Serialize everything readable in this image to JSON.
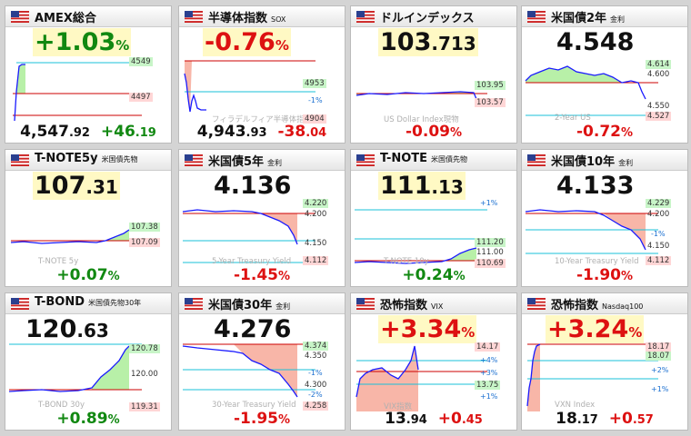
{
  "colors": {
    "positive": "#118811",
    "negative": "#dd1111",
    "line": "#1a1aff",
    "fill_pos": "#b8f0a8",
    "fill_neg": "#f8b6a8"
  },
  "panels": [
    {
      "id": "amex",
      "title": "AMEX総合",
      "subtitle": "",
      "big": {
        "int": "+1.03",
        "dec": "",
        "pct": "%"
      },
      "big_color": "pos",
      "labels": [
        {
          "text": "4549",
          "bg": "g"
        },
        {
          "text": "4497",
          "bg": "r"
        }
      ],
      "watermark": "",
      "footer": {
        "value_int": "4,547",
        "value_dec": ".92",
        "change_int": "+46",
        "change_dec": ".19",
        "change_color": "pos"
      }
    },
    {
      "id": "sox",
      "title": "半導体指数",
      "subtitle": "SOX",
      "big": {
        "int": "-0.76",
        "dec": "",
        "pct": "%"
      },
      "big_color": "neg",
      "labels": [
        {
          "text": "4953",
          "bg": "g"
        },
        {
          "text": "-1%",
          "bg": "p"
        },
        {
          "text": "4904",
          "bg": "r"
        }
      ],
      "watermark": "フィラデルフィア半導体指数",
      "footer": {
        "value_int": "4,943",
        "value_dec": ".93",
        "change_int": "-38",
        "change_dec": ".04",
        "change_color": "neg"
      }
    },
    {
      "id": "dxy",
      "title": "ドルインデックス",
      "subtitle": "",
      "big": {
        "int": "103",
        "dec": ".713",
        "pct": ""
      },
      "big_color": "blk",
      "labels": [
        {
          "text": "103.95",
          "bg": "g"
        },
        {
          "text": "103.57",
          "bg": "r"
        }
      ],
      "watermark": "US Dollar Index現物",
      "footer": {
        "value_int": "-0.09",
        "value_dec": "%",
        "change_int": "",
        "change_dec": "",
        "change_color": "neg",
        "single": true
      }
    },
    {
      "id": "us2y",
      "title": "米国債2年",
      "subtitle": "金利",
      "big": {
        "int": "4.548",
        "dec": "",
        "pct": ""
      },
      "big_color": "blk",
      "labels": [
        {
          "text": "4.614",
          "bg": "g"
        },
        {
          "text": "4.600",
          "bg": "n"
        },
        {
          "text": "4.550",
          "bg": "n"
        },
        {
          "text": "4.527",
          "bg": "r"
        }
      ],
      "watermark": "2-Year US",
      "footer": {
        "value_int": "-0.72",
        "value_dec": "%",
        "change_int": "",
        "change_dec": "",
        "change_color": "neg",
        "single": true
      }
    },
    {
      "id": "tnote5",
      "title": "T-NOTE5y",
      "subtitle": "米国債先物",
      "big": {
        "int": "107",
        "dec": ".31",
        "pct": ""
      },
      "big_color": "blk",
      "labels": [
        {
          "text": "107.38",
          "bg": "g"
        },
        {
          "text": "107.09",
          "bg": "r"
        }
      ],
      "watermark": "T-NOTE 5y",
      "footer": {
        "value_int": "+0.07",
        "value_dec": "%",
        "change_int": "",
        "change_dec": "",
        "change_color": "pos",
        "single": true
      }
    },
    {
      "id": "us5y",
      "title": "米国債5年",
      "subtitle": "金利",
      "big": {
        "int": "4.136",
        "dec": "",
        "pct": ""
      },
      "big_color": "blk",
      "labels": [
        {
          "text": "4.220",
          "bg": "g"
        },
        {
          "text": "4.200",
          "bg": "n"
        },
        {
          "text": "4.150",
          "bg": "n"
        },
        {
          "text": "4.112",
          "bg": "r"
        }
      ],
      "watermark": "5-Year Treasury Yield",
      "footer": {
        "value_int": "-1.45",
        "value_dec": "%",
        "change_int": "",
        "change_dec": "",
        "change_color": "neg",
        "single": true
      }
    },
    {
      "id": "tnote",
      "title": "T-NOTE",
      "subtitle": "米国債先物",
      "big": {
        "int": "111",
        "dec": ".13",
        "pct": ""
      },
      "big_color": "blk",
      "labels": [
        {
          "text": "+1%",
          "bg": "p"
        },
        {
          "text": "111.20",
          "bg": "g"
        },
        {
          "text": "111.00",
          "bg": "n"
        },
        {
          "text": "110.69",
          "bg": "r"
        }
      ],
      "watermark": "T-NOTE 10y",
      "footer": {
        "value_int": "+0.24",
        "value_dec": "%",
        "change_int": "",
        "change_dec": "",
        "change_color": "pos",
        "single": true
      }
    },
    {
      "id": "us10y",
      "title": "米国債10年",
      "subtitle": "金利",
      "big": {
        "int": "4.133",
        "dec": "",
        "pct": ""
      },
      "big_color": "blk",
      "labels": [
        {
          "text": "4.229",
          "bg": "g"
        },
        {
          "text": "4.200",
          "bg": "n"
        },
        {
          "text": "-1%",
          "bg": "p"
        },
        {
          "text": "4.150",
          "bg": "n"
        },
        {
          "text": "4.112",
          "bg": "r"
        }
      ],
      "watermark": "10-Year Treasury Yield",
      "footer": {
        "value_int": "-1.90",
        "value_dec": "%",
        "change_int": "",
        "change_dec": "",
        "change_color": "neg",
        "single": true
      }
    },
    {
      "id": "tbond",
      "title": "T-BOND",
      "subtitle": "米国債先物30年",
      "big": {
        "int": "120",
        "dec": ".63",
        "pct": ""
      },
      "big_color": "blk",
      "labels": [
        {
          "text": "120.78",
          "bg": "g"
        },
        {
          "text": "120.00",
          "bg": "n"
        },
        {
          "text": "119.31",
          "bg": "r"
        }
      ],
      "watermark": "T-BOND 30y",
      "footer": {
        "value_int": "+0.89",
        "value_dec": "%",
        "change_int": "",
        "change_dec": "",
        "change_color": "pos",
        "single": true
      }
    },
    {
      "id": "us30y",
      "title": "米国債30年",
      "subtitle": "金利",
      "big": {
        "int": "4.276",
        "dec": "",
        "pct": ""
      },
      "big_color": "blk",
      "labels": [
        {
          "text": "4.374",
          "bg": "g"
        },
        {
          "text": "4.350",
          "bg": "n"
        },
        {
          "text": "-1%",
          "bg": "p"
        },
        {
          "text": "4.300",
          "bg": "n"
        },
        {
          "text": "-2%",
          "bg": "p"
        },
        {
          "text": "4.258",
          "bg": "r"
        }
      ],
      "watermark": "30-Year Treasury Yield",
      "footer": {
        "value_int": "-1.95",
        "value_dec": "%",
        "change_int": "",
        "change_dec": "",
        "change_color": "neg",
        "single": true
      }
    },
    {
      "id": "vix",
      "title": "恐怖指数",
      "subtitle": "VIX",
      "big": {
        "int": "+3.34",
        "dec": "",
        "pct": "%"
      },
      "big_color": "neg",
      "labels": [
        {
          "text": "14.17",
          "bg": "r"
        },
        {
          "text": "+4%",
          "bg": "p"
        },
        {
          "text": "+3%",
          "bg": "p"
        },
        {
          "text": "13.75",
          "bg": "g"
        },
        {
          "text": "+1%",
          "bg": "p"
        }
      ],
      "watermark": "VIX指数",
      "footer": {
        "value_int": "13",
        "value_dec": ".94",
        "change_int": "+0",
        "change_dec": ".45",
        "change_color": "neg"
      }
    },
    {
      "id": "vxn",
      "title": "恐怖指数",
      "subtitle": "Nasdaq100",
      "big": {
        "int": "+3.24",
        "dec": "",
        "pct": "%"
      },
      "big_color": "neg",
      "labels": [
        {
          "text": "18.17",
          "bg": "r"
        },
        {
          "text": "18.07",
          "bg": "g"
        },
        {
          "text": "+2%",
          "bg": "p"
        },
        {
          "text": "+1%",
          "bg": "p"
        }
      ],
      "watermark": "VXN Index",
      "footer": {
        "value_int": "18",
        "value_dec": ".17",
        "change_int": "+0",
        "change_dec": ".57",
        "change_color": "neg"
      }
    }
  ]
}
